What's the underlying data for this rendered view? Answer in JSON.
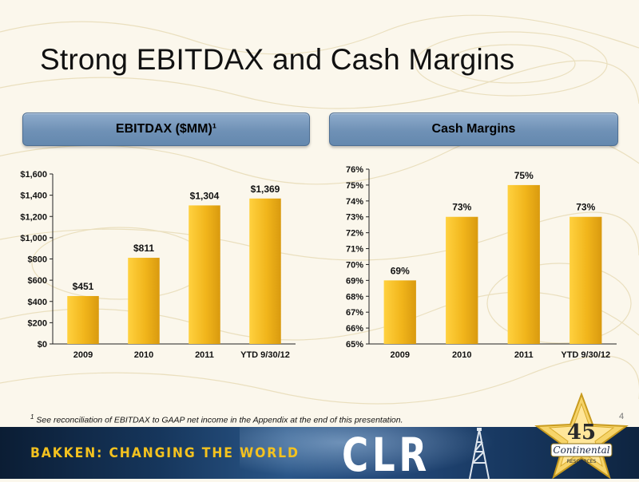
{
  "slide": {
    "title": "Strong EBITDAX and Cash Margins",
    "page_number": "4",
    "footnote_marker": "1",
    "footnote_text": "See reconciliation of EBITDAX to GAAP net income in the Appendix at the end of this presentation."
  },
  "banner": {
    "tagline": "BAKKEN: CHANGING THE WORLD",
    "logo_text": "CLR",
    "badge_number": "45",
    "badge_text": "Continental",
    "badge_subtext": "RESOURCES"
  },
  "headers": {
    "left": "EBITDAX  ($MM)¹",
    "right": "Cash Margins"
  },
  "colors": {
    "bar": "#f1b51b",
    "bar_light": "#ffd13f",
    "bar_dark": "#d99a0f",
    "header_blue": "#6f91b6",
    "banner_yellow": "#f4c21f"
  },
  "chart_data": [
    {
      "type": "bar",
      "title": "EBITDAX  ($MM)¹",
      "categories": [
        "2009",
        "2010",
        "2011",
        "YTD 9/30/12"
      ],
      "values": [
        451,
        811,
        1304,
        1369
      ],
      "data_labels": [
        "$451",
        "$811",
        "$1,304",
        "$1,369"
      ],
      "ylim": [
        0,
        1600
      ],
      "yticks": [
        "$0",
        "$200",
        "$400",
        "$600",
        "$800",
        "$1,000",
        "$1,200",
        "$1,400",
        "$1,600"
      ],
      "xlabel": "",
      "ylabel": "",
      "grid": false,
      "legend": "none"
    },
    {
      "type": "bar",
      "title": "Cash Margins",
      "categories": [
        "2009",
        "2010",
        "2011",
        "YTD 9/30/12"
      ],
      "values": [
        69,
        73,
        75,
        73
      ],
      "data_labels": [
        "69%",
        "73%",
        "75%",
        "73%"
      ],
      "ylim": [
        65,
        76
      ],
      "yticks": [
        "65%",
        "66%",
        "67%",
        "68%",
        "69%",
        "70%",
        "71%",
        "72%",
        "73%",
        "74%",
        "75%",
        "76%"
      ],
      "xlabel": "",
      "ylabel": "",
      "grid": false,
      "legend": "none"
    }
  ]
}
